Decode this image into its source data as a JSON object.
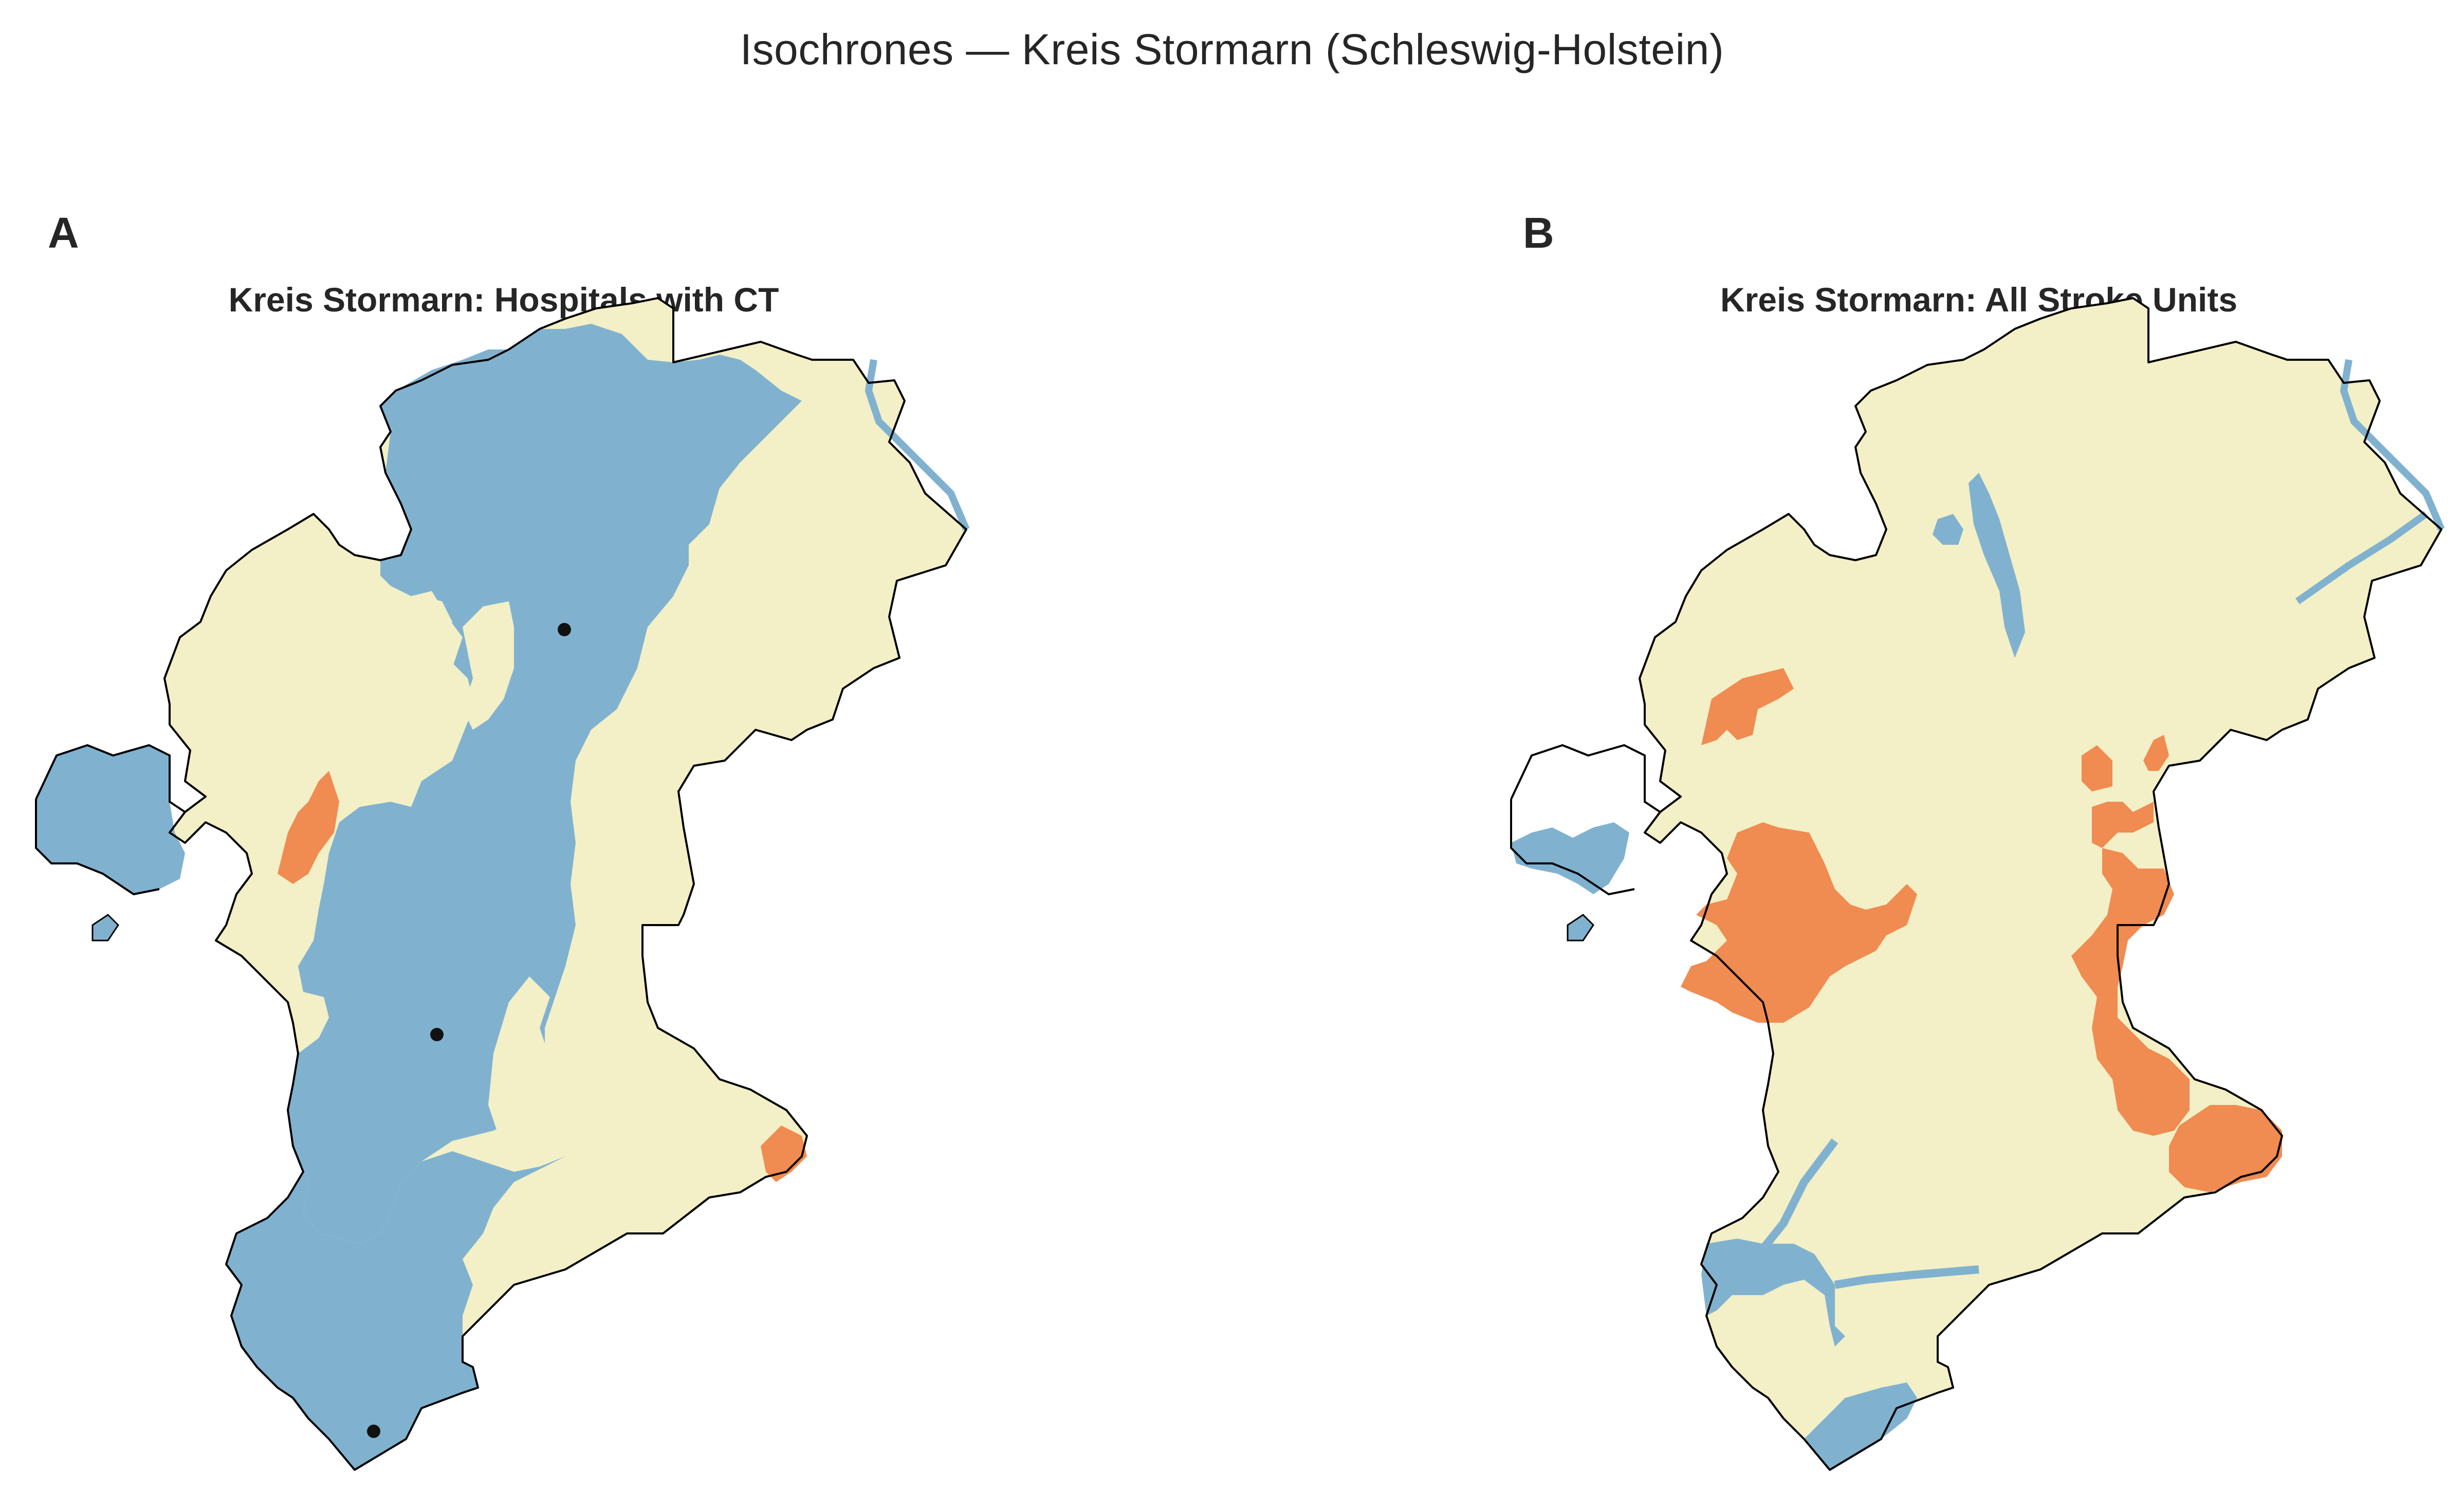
{
  "figure": {
    "title": "Isochrones — Kreis Stormarn (Schleswig-Holstein)"
  },
  "colors": {
    "reachable": "#80b2d0",
    "partial": "#f3efc6",
    "unreachable": "#f08b51",
    "border": "#000000",
    "site_marker": "#111111"
  },
  "panels": [
    {
      "letter": "A",
      "title": "Kreis Stormarn: Hospitals with CT"
    },
    {
      "letter": "B",
      "title": "Kreis Stormarn: All Stroke Units"
    }
  ]
}
